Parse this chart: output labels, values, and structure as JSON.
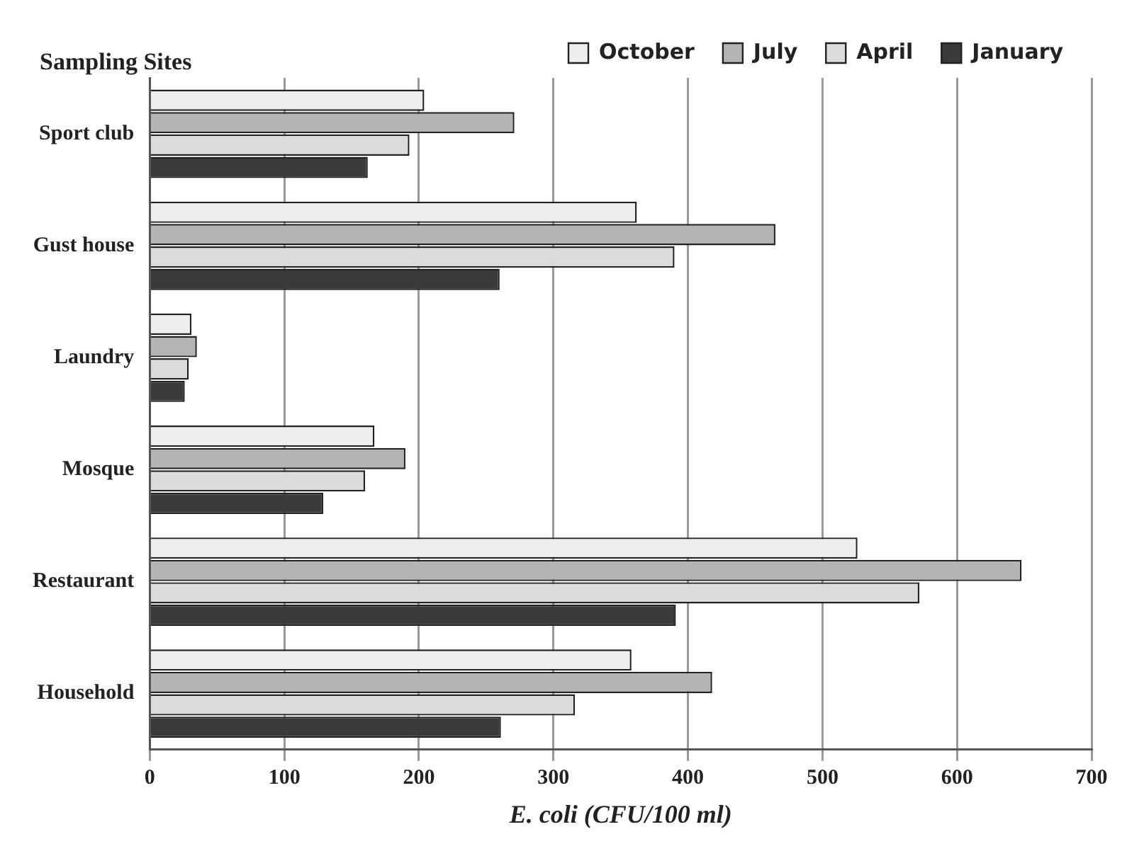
{
  "chart_data": {
    "type": "bar",
    "orientation": "horizontal",
    "ylabel": "Sampling Sites",
    "xlabel": "E. coli (CFU/100 ml)",
    "categories": [
      "Sport club",
      "Gust house",
      "Laundry",
      "Mosque",
      "Restaurant",
      "Household"
    ],
    "series": [
      {
        "name": "October",
        "color": "#eeeeee",
        "values": [
          204,
          362,
          31,
          167,
          526,
          358
        ]
      },
      {
        "name": "July",
        "color": "#b4b4b4",
        "values": [
          271,
          465,
          35,
          190,
          648,
          418
        ]
      },
      {
        "name": "April",
        "color": "#dcdcdc",
        "values": [
          193,
          390,
          29,
          160,
          572,
          316
        ]
      },
      {
        "name": "January",
        "color": "#3a3a3a",
        "values": [
          162,
          260,
          26,
          129,
          391,
          261
        ]
      }
    ],
    "xlim": [
      0,
      700
    ],
    "xticks": [
      0,
      100,
      200,
      300,
      400,
      500,
      600,
      700
    ],
    "grid": "x",
    "legend": "top right"
  }
}
